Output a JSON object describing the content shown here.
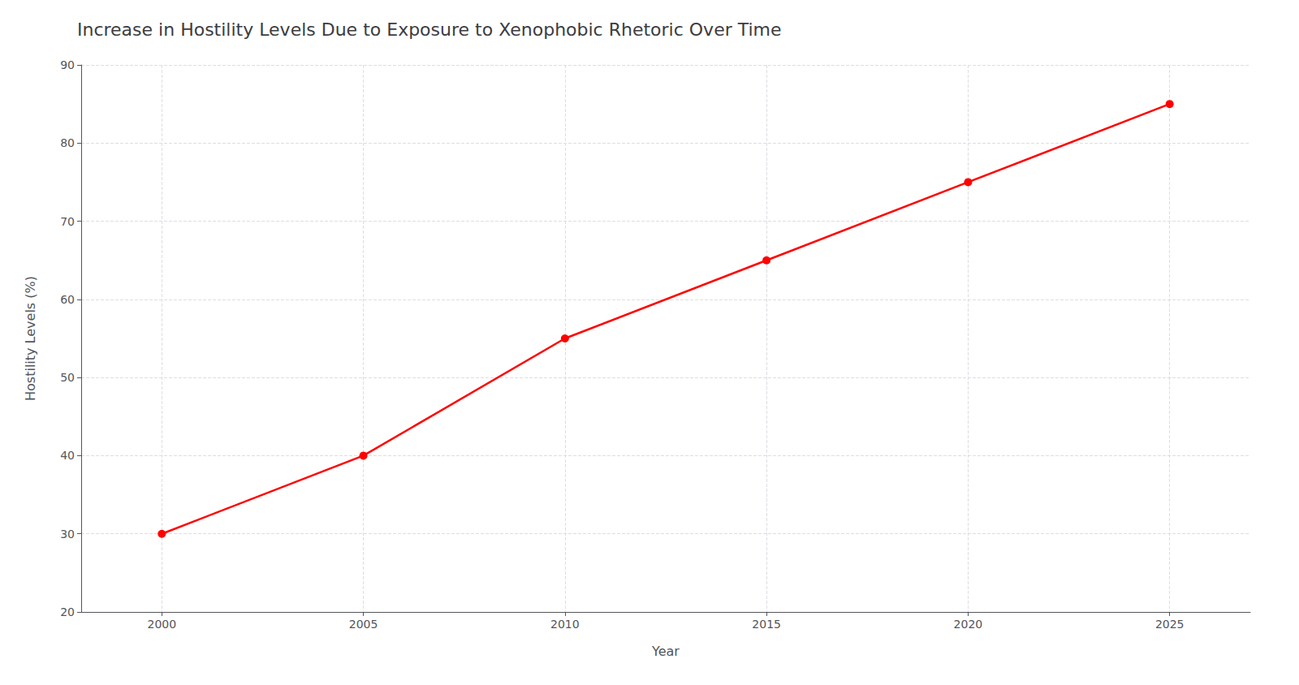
{
  "chart_data": {
    "type": "line",
    "title": "Increase in Hostility Levels Due to Exposure to Xenophobic Rhetoric Over Time",
    "xlabel": "Year",
    "ylabel": "Hostility Levels (%)",
    "x": [
      2000,
      2005,
      2010,
      2015,
      2020,
      2025
    ],
    "values": [
      30,
      40,
      55,
      65,
      75,
      85
    ],
    "color": "#ff0000",
    "marker": "circle",
    "xlim": [
      1998,
      2027
    ],
    "xticks": [
      2000,
      2005,
      2010,
      2015,
      2020,
      2025
    ],
    "ylim": [
      20,
      90
    ],
    "yticks": [
      20,
      30,
      40,
      50,
      60,
      70,
      80,
      90
    ],
    "grid": true
  }
}
